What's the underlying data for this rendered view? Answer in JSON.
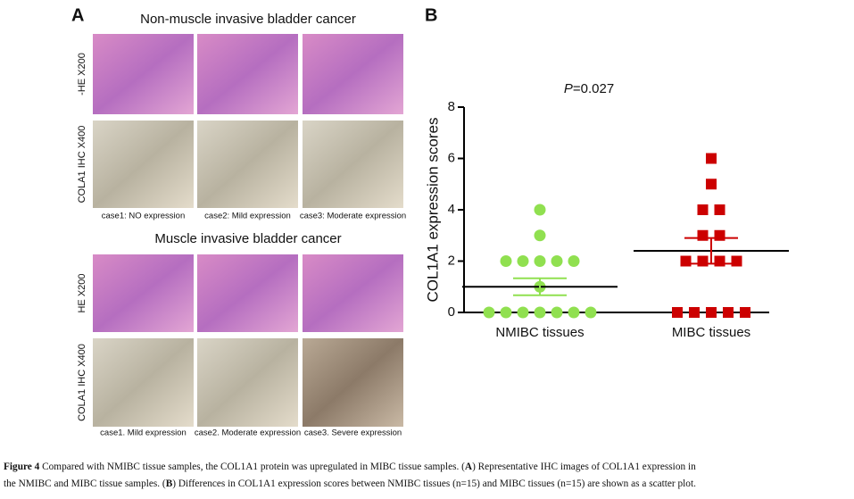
{
  "panel_a": {
    "label": "A",
    "sections": [
      {
        "title": "Non-muscle invasive bladder cancer",
        "rows": [
          "-HE X200",
          "COLA1 IHC X400"
        ],
        "cases": [
          "case1: NO expression",
          "case2: Mild expression",
          "case3: Moderate expression"
        ]
      },
      {
        "title": "Muscle invasive bladder cancer",
        "rows": [
          "HE X200",
          "COLA1 IHC X400"
        ],
        "cases": [
          "case1. Mild expression",
          "case2. Moderate expression",
          "case3. Severe expression"
        ]
      }
    ]
  },
  "panel_b_label": "B",
  "chart_data": {
    "type": "scatter",
    "ylabel": "COL1A1 expression scores",
    "annotation": {
      "italic": "P",
      "text": "=0.027"
    },
    "categories": [
      "NMIBC tissues",
      "MIBC tissues"
    ],
    "series": [
      {
        "color": "#90e050",
        "marker": "circle",
        "values": [
          4,
          3,
          2,
          2,
          2,
          2,
          2,
          1,
          0,
          0,
          0,
          0,
          0,
          0,
          0
        ],
        "mean": 1.0,
        "sem": 0.33
      },
      {
        "color": "#cc0000",
        "marker": "square",
        "values": [
          6,
          5,
          4,
          4,
          3,
          3,
          2,
          2,
          2,
          2,
          0,
          0,
          0,
          0,
          0
        ],
        "mean": 2.4,
        "sem": 0.5
      }
    ],
    "ylim": [
      0,
      8
    ],
    "yticks": [
      0,
      2,
      4,
      6,
      8
    ]
  },
  "caption": [
    [
      {
        "text": "Figure 4",
        "bold": true
      },
      {
        "text": " Compared with NMIBC tissue samples, the COL1A1 protein was upregulated in MIBC tissue samples. (",
        "bold": false
      },
      {
        "text": "A",
        "bold": true
      },
      {
        "text": ") Representative IHC images of COL1A1 expression in",
        "bold": false
      }
    ],
    [
      {
        "text": "the NMIBC and MIBC tissue samples. (",
        "bold": false
      },
      {
        "text": "B",
        "bold": true
      },
      {
        "text": ") Differences in COL1A1 expression scores between NMIBC tissues (n=15) and MIBC tissues (n=15) are shown as a scatter plot.",
        "bold": false
      }
    ]
  ]
}
